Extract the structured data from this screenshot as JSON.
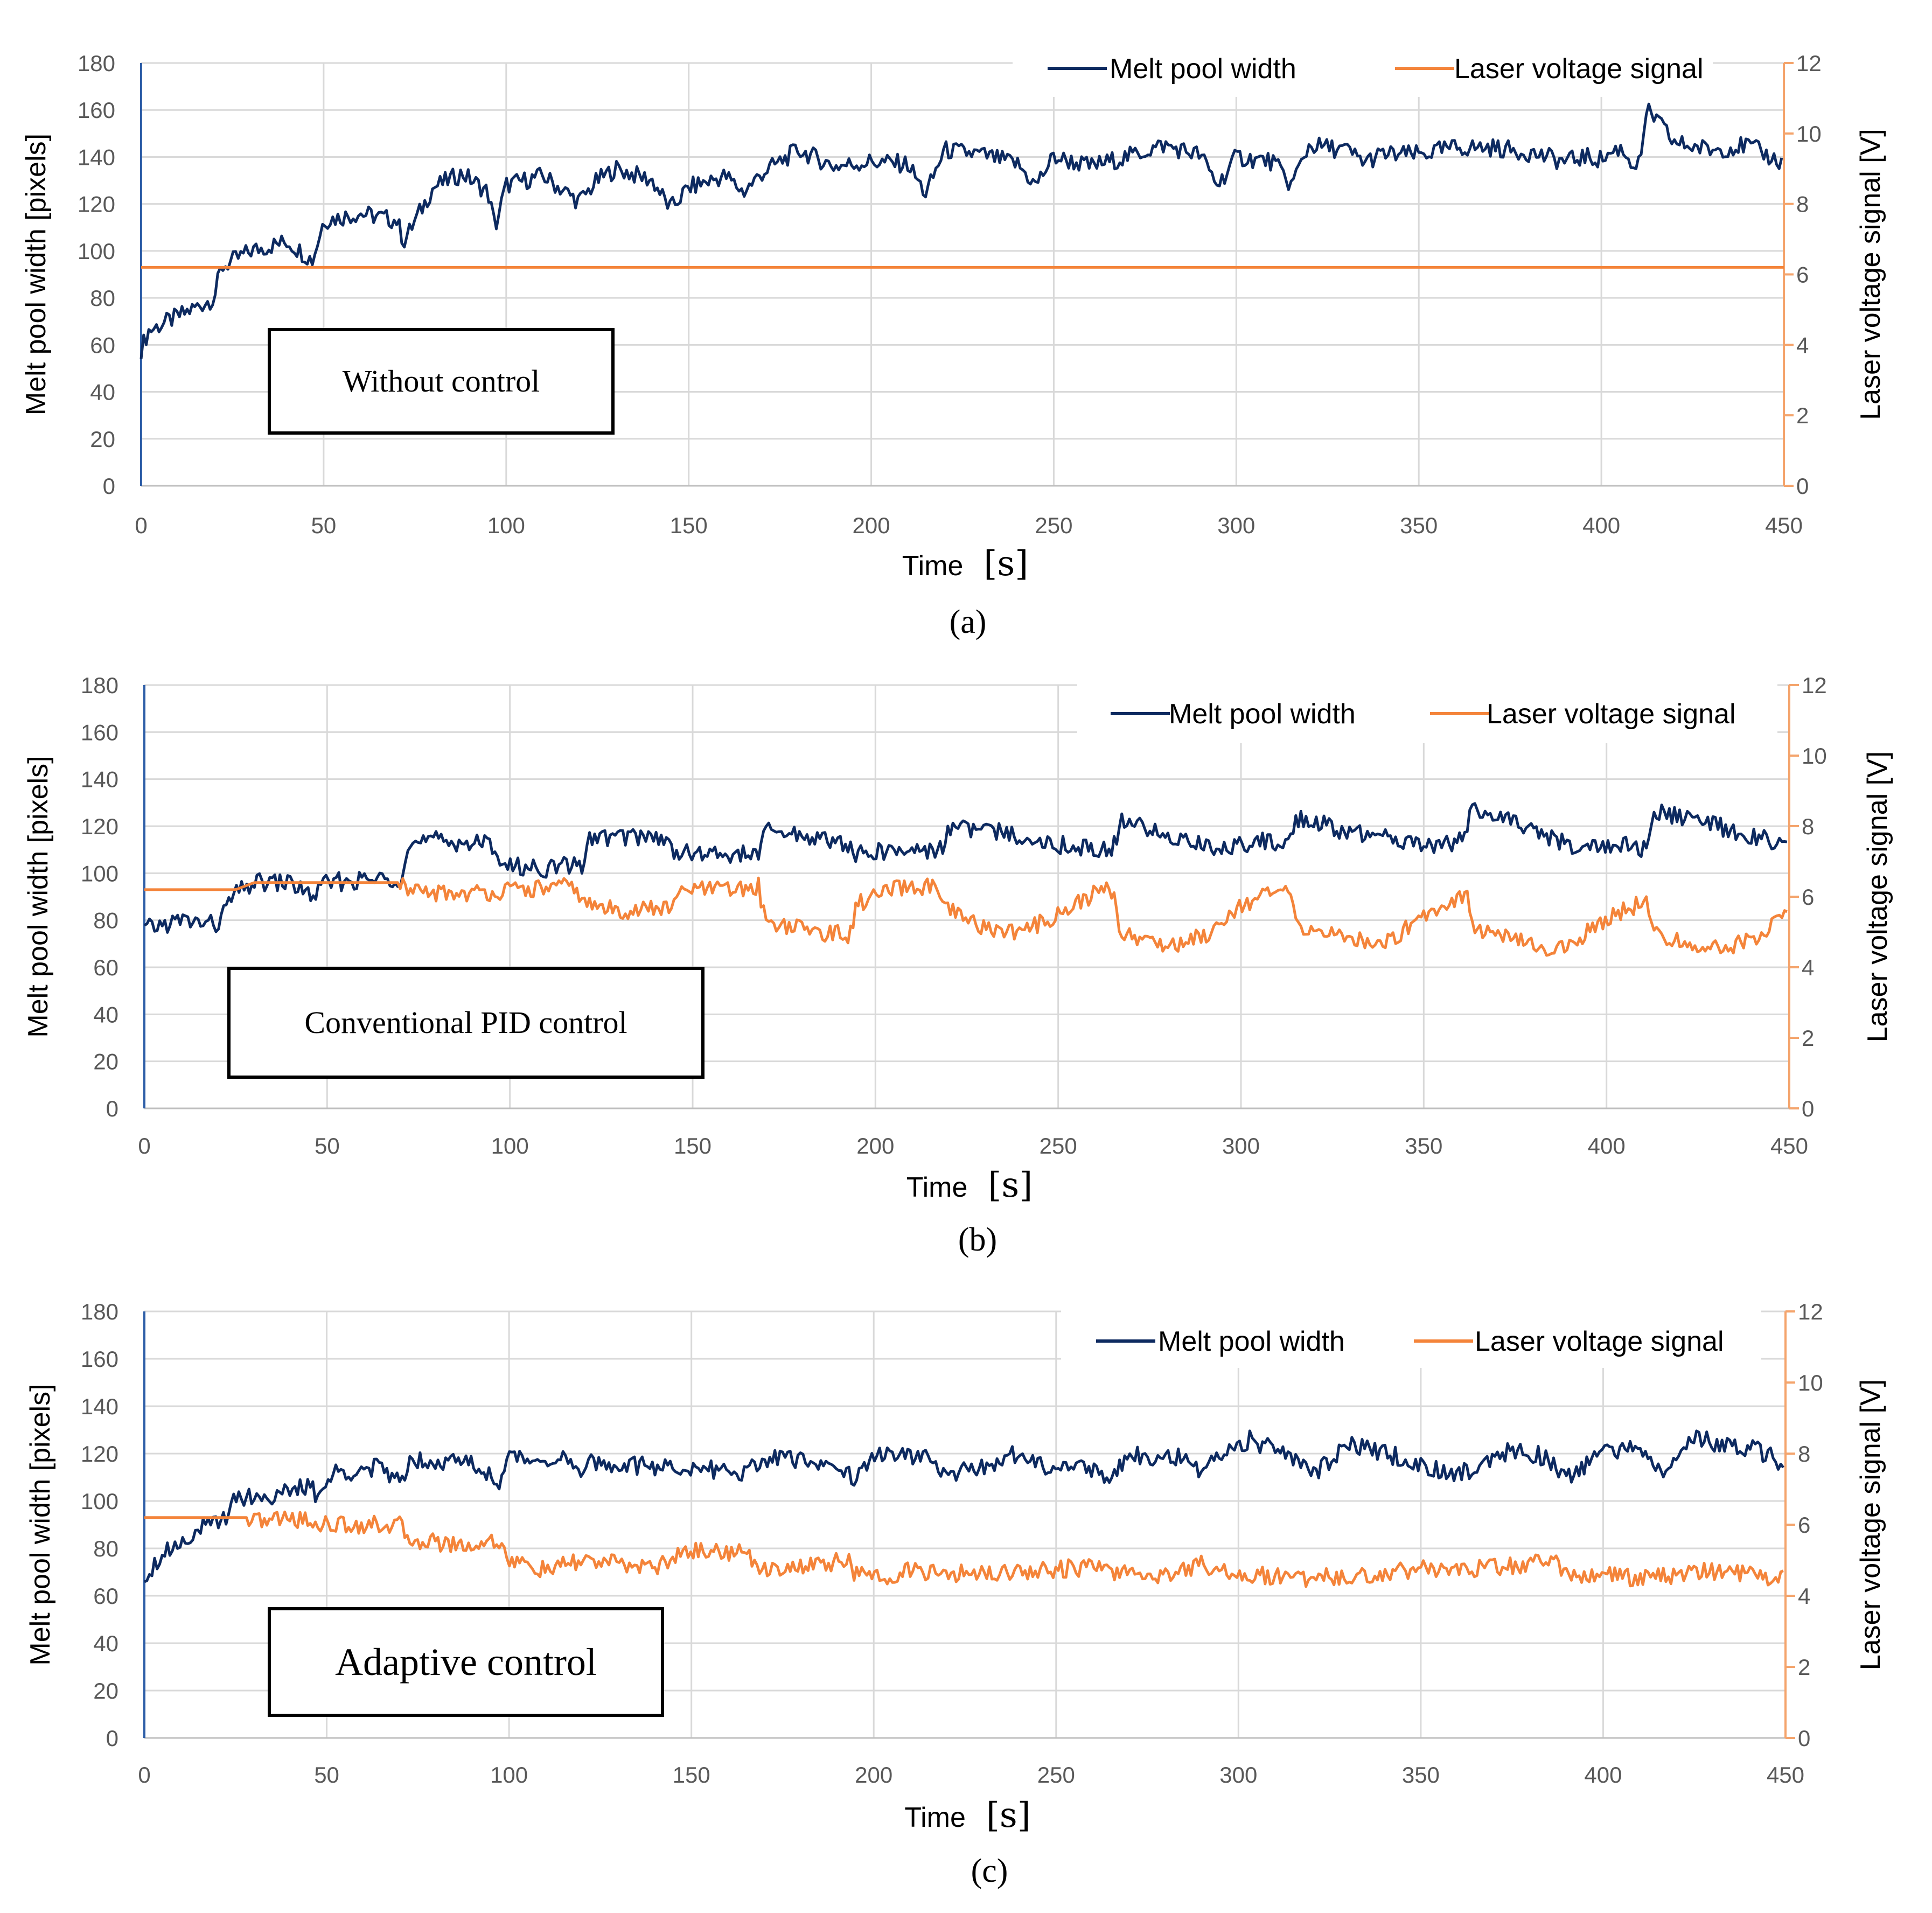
{
  "figure": {
    "shared": {
      "x_axis_label": "Time",
      "x_axis_unit": "[s]",
      "y_left_label": "Melt pool width [pixels]",
      "y_right_label": "Laser voltage signal [V]",
      "series_names": [
        "Melt pool width",
        "Laser voltage signal"
      ]
    },
    "colors": {
      "width": "#0d2a60",
      "voltage": "#f4843a",
      "grid": "#d9d9d9",
      "axis_left": "#2e5ea7",
      "axis_right": "#f4a46c"
    }
  },
  "chart_data": [
    {
      "type": "line",
      "caption": "(a)",
      "annotation": "Without control",
      "xlabel": "Time [s]",
      "ylabel": "Melt pool width [pixels]",
      "y2label": "Laser voltage signal [V]",
      "xlim": [
        0,
        450
      ],
      "ylim": [
        0,
        180
      ],
      "y2lim": [
        0,
        12
      ],
      "x_ticks": [
        0,
        50,
        100,
        150,
        200,
        250,
        300,
        350,
        400,
        450
      ],
      "y_ticks": [
        0,
        20,
        40,
        60,
        80,
        100,
        120,
        140,
        160,
        180
      ],
      "y2_ticks": [
        0,
        2,
        4,
        6,
        8,
        10,
        12
      ],
      "legend": [
        "Melt pool width",
        "Laser voltage signal"
      ],
      "series": [
        {
          "name": "Melt pool width",
          "axis": "left",
          "color": "#0d2a60",
          "x": [
            0,
            2,
            10,
            20,
            22,
            30,
            40,
            47,
            50,
            60,
            70,
            72,
            80,
            88,
            95,
            97,
            100,
            110,
            120,
            125,
            130,
            140,
            145,
            150,
            160,
            165,
            170,
            180,
            190,
            200,
            210,
            215,
            220,
            230,
            240,
            245,
            250,
            260,
            270,
            280,
            290,
            295,
            300,
            310,
            315,
            320,
            330,
            335,
            340,
            350,
            360,
            370,
            380,
            390,
            395,
            400,
            405,
            410,
            413,
            420,
            430,
            440,
            450
          ],
          "values": [
            58,
            66,
            72,
            80,
            93,
            100,
            104,
            96,
            113,
            116,
            113,
            104,
            127,
            133,
            125,
            110,
            128,
            132,
            121,
            130,
            135,
            130,
            118,
            127,
            132,
            125,
            133,
            143,
            136,
            138,
            137,
            124,
            143,
            141,
            137,
            128,
            140,
            136,
            140,
            145,
            141,
            128,
            140,
            138,
            128,
            145,
            143,
            138,
            141,
            141,
            144,
            144,
            142,
            138,
            140,
            139,
            144,
            135,
            160,
            146,
            143,
            145,
            137
          ]
        },
        {
          "name": "Laser voltage signal",
          "axis": "right",
          "color": "#f4843a",
          "x": [
            0,
            450
          ],
          "values": [
            6.2,
            6.2
          ]
        }
      ]
    },
    {
      "type": "line",
      "caption": "(b)",
      "annotation": "Conventional PID control",
      "xlabel": "Time [s]",
      "ylabel": "Melt pool width [pixels]",
      "y2label": "Laser voltage signal [V]",
      "xlim": [
        0,
        450
      ],
      "ylim": [
        0,
        180
      ],
      "y2lim": [
        0,
        12
      ],
      "x_ticks": [
        0,
        50,
        100,
        150,
        200,
        250,
        300,
        350,
        400,
        450
      ],
      "y_ticks": [
        0,
        20,
        40,
        60,
        80,
        100,
        120,
        140,
        160,
        180
      ],
      "y2_ticks": [
        0,
        2,
        4,
        6,
        8,
        10,
        12
      ],
      "legend": [
        "Melt pool width",
        "Laser voltage signal"
      ],
      "series": [
        {
          "name": "Melt pool width",
          "axis": "left",
          "color": "#0d2a60",
          "x": [
            0,
            10,
            20,
            24,
            30,
            40,
            46,
            50,
            60,
            70,
            72,
            80,
            96,
            98,
            110,
            120,
            122,
            140,
            145,
            150,
            160,
            168,
            170,
            185,
            192,
            195,
            210,
            218,
            220,
            240,
            250,
            265,
            267,
            280,
            290,
            292,
            305,
            313,
            315,
            330,
            340,
            350,
            361,
            363,
            380,
            388,
            390,
            405,
            411,
            413,
            430,
            440,
            450
          ],
          "values": [
            76,
            80,
            78,
            90,
            96,
            96,
            90,
            96,
            97,
            98,
            112,
            114,
            112,
            103,
            102,
            104,
            115,
            116,
            110,
            108,
            108,
            108,
            118,
            115,
            112,
            108,
            110,
            110,
            120,
            116,
            112,
            110,
            122,
            116,
            112,
            110,
            114,
            112,
            124,
            117,
            115,
            112,
            114,
            128,
            118,
            113,
            111,
            112,
            110,
            126,
            120,
            116,
            112
          ]
        },
        {
          "name": "Laser voltage signal",
          "axis": "right",
          "color": "#f4843a",
          "x": [
            0,
            25,
            30,
            50,
            70,
            72,
            90,
            118,
            120,
            130,
            145,
            147,
            165,
            168,
            170,
            185,
            193,
            195,
            205,
            216,
            218,
            230,
            240,
            250,
            260,
            265,
            267,
            280,
            290,
            300,
            313,
            315,
            330,
            340,
            350,
            362,
            364,
            380,
            388,
            400,
            411,
            413,
            430,
            440,
            450
          ],
          "values": [
            6.2,
            6.2,
            6.4,
            6.4,
            6.4,
            6.1,
            6.1,
            6.3,
            5.8,
            5.6,
            5.7,
            6.2,
            6.2,
            6.3,
            5.3,
            5.0,
            4.9,
            5.8,
            6.2,
            6.3,
            5.7,
            5.1,
            5.0,
            5.5,
            6.1,
            6.2,
            5.0,
            4.6,
            4.9,
            5.8,
            6.2,
            5.2,
            4.8,
            4.7,
            5.5,
            6.1,
            5.1,
            4.6,
            4.5,
            5.4,
            5.9,
            4.9,
            4.5,
            4.8,
            5.6
          ]
        }
      ]
    },
    {
      "type": "line",
      "caption": "(c)",
      "annotation": "Adaptive control",
      "xlabel": "Time [s]",
      "ylabel": "Melt pool width [pixels]",
      "y2label": "Laser voltage signal [V]",
      "xlim": [
        0,
        450
      ],
      "ylim": [
        0,
        180
      ],
      "y2lim": [
        0,
        12
      ],
      "x_ticks": [
        0,
        50,
        100,
        150,
        200,
        250,
        300,
        350,
        400,
        450
      ],
      "y_ticks": [
        0,
        20,
        40,
        60,
        80,
        100,
        120,
        140,
        160,
        180
      ],
      "y2_ticks": [
        0,
        2,
        4,
        6,
        8,
        10,
        12
      ],
      "legend": [
        "Melt pool width",
        "Laser voltage signal"
      ],
      "series": [
        {
          "name": "Melt pool width",
          "axis": "left",
          "color": "#0d2a60",
          "x": [
            0,
            5,
            15,
            22,
            24,
            35,
            45,
            48,
            52,
            65,
            70,
            73,
            90,
            97,
            100,
            115,
            120,
            122,
            145,
            150,
            165,
            170,
            190,
            195,
            200,
            215,
            220,
            240,
            245,
            255,
            265,
            270,
            285,
            290,
            295,
            303,
            315,
            320,
            330,
            345,
            350,
            360,
            365,
            375,
            385,
            390,
            400,
            410,
            415,
            425,
            435,
            445,
            450
          ],
          "values": [
            68,
            78,
            88,
            92,
            102,
            102,
            106,
            102,
            112,
            114,
            108,
            118,
            116,
            108,
            118,
            118,
            110,
            116,
            114,
            114,
            112,
            118,
            116,
            108,
            120,
            118,
            110,
            120,
            115,
            116,
            110,
            120,
            118,
            110,
            120,
            126,
            118,
            110,
            124,
            118,
            115,
            112,
            114,
            122,
            118,
            110,
            120,
            124,
            112,
            126,
            124,
            120,
            114
          ]
        },
        {
          "name": "Laser voltage signal",
          "axis": "right",
          "color": "#f4843a",
          "x": [
            0,
            28,
            30,
            40,
            50,
            60,
            70,
            72,
            90,
            97,
            100,
            110,
            120,
            140,
            150,
            165,
            168,
            180,
            193,
            195,
            200,
            210,
            220,
            240,
            260,
            270,
            280,
            290,
            300,
            320,
            340,
            350,
            360,
            380,
            385,
            390,
            400,
            410,
            430,
            440,
            450
          ],
          "values": [
            6.2,
            6.2,
            6.1,
            6.2,
            6.0,
            6.0,
            6.0,
            5.6,
            5.4,
            5.6,
            5.0,
            4.7,
            5.0,
            4.8,
            5.3,
            5.2,
            4.8,
            4.8,
            5.0,
            4.6,
            4.5,
            4.7,
            4.6,
            4.7,
            4.8,
            4.6,
            4.6,
            4.9,
            4.6,
            4.5,
            4.6,
            4.8,
            4.7,
            4.9,
            5.1,
            4.6,
            4.6,
            4.5,
            4.7,
            4.6,
            4.5
          ]
        }
      ]
    }
  ]
}
